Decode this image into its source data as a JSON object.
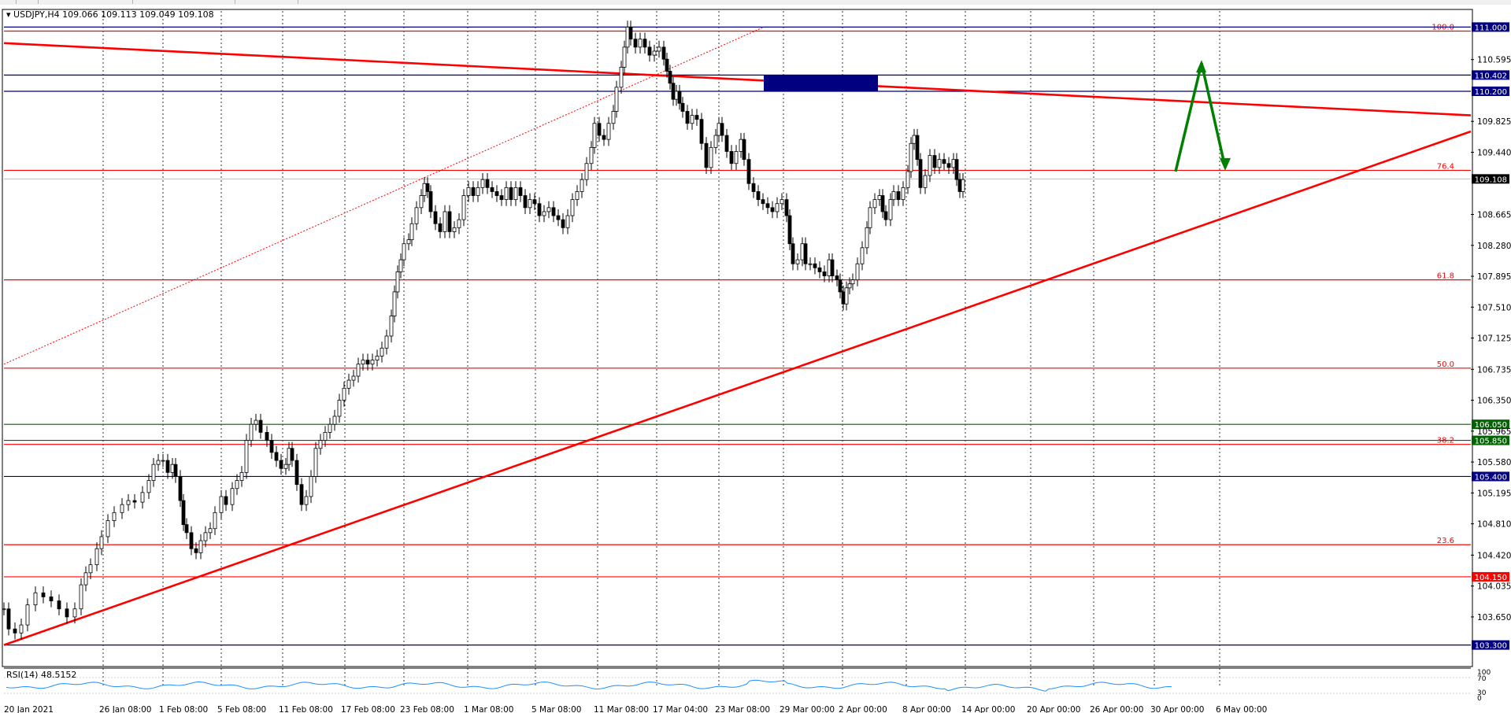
{
  "chart_data": {
    "type": "candlestick",
    "title": "USDJPY,H4",
    "ohlc_header": "109.066 109.113 109.049 109.108",
    "indicator": "RSI(14) 48.5152",
    "ylim": [
      103.1,
      111.2
    ],
    "price_ticks": [
      "110.595",
      "109.825",
      "109.440",
      "108.665",
      "108.280",
      "107.895",
      "107.510",
      "107.125",
      "106.735",
      "106.350",
      "105.965",
      "105.580",
      "105.195",
      "104.810",
      "104.420",
      "104.035",
      "103.650"
    ],
    "date_labels": [
      "20 Jan 2021",
      "26 Jan 08:00",
      "1 Feb 08:00",
      "5 Feb 08:00",
      "11 Feb 08:00",
      "17 Feb 08:00",
      "23 Feb 08:00",
      "1 Mar 08:00",
      "5 Mar 08:00",
      "11 Mar 08:00",
      "17 Mar 04:00",
      "23 Mar 08:00",
      "29 Mar 00:00",
      "2 Apr 00:00",
      "8 Apr 00:00",
      "14 Apr 00:00",
      "20 Apr 00:00",
      "26 Apr 00:00",
      "30 Apr 00:00",
      "6 May 00:00"
    ],
    "price_series": [
      [
        0,
        103.75
      ],
      [
        6,
        103.5
      ],
      [
        14,
        103.45
      ],
      [
        22,
        103.55
      ],
      [
        30,
        103.8
      ],
      [
        40,
        103.95
      ],
      [
        50,
        103.9
      ],
      [
        60,
        103.85
      ],
      [
        70,
        103.75
      ],
      [
        80,
        103.65
      ],
      [
        90,
        103.75
      ],
      [
        98,
        104.05
      ],
      [
        104,
        104.2
      ],
      [
        110,
        104.3
      ],
      [
        118,
        104.5
      ],
      [
        124,
        104.65
      ],
      [
        132,
        104.85
      ],
      [
        140,
        104.95
      ],
      [
        150,
        105.05
      ],
      [
        158,
        105.1
      ],
      [
        166,
        105.08
      ],
      [
        176,
        105.2
      ],
      [
        184,
        105.35
      ],
      [
        190,
        105.55
      ],
      [
        196,
        105.6
      ],
      [
        202,
        105.6
      ],
      [
        208,
        105.45
      ],
      [
        214,
        105.55
      ],
      [
        218,
        105.4
      ],
      [
        224,
        105.1
      ],
      [
        228,
        104.8
      ],
      [
        232,
        104.7
      ],
      [
        238,
        104.5
      ],
      [
        244,
        104.45
      ],
      [
        250,
        104.6
      ],
      [
        256,
        104.7
      ],
      [
        262,
        104.75
      ],
      [
        268,
        104.95
      ],
      [
        276,
        105.15
      ],
      [
        282,
        105.05
      ],
      [
        290,
        105.25
      ],
      [
        296,
        105.35
      ],
      [
        302,
        105.45
      ],
      [
        308,
        105.85
      ],
      [
        314,
        106.05
      ],
      [
        320,
        106.1
      ],
      [
        326,
        105.95
      ],
      [
        334,
        105.85
      ],
      [
        340,
        105.7
      ],
      [
        346,
        105.6
      ],
      [
        352,
        105.5
      ],
      [
        358,
        105.55
      ],
      [
        362,
        105.75
      ],
      [
        366,
        105.6
      ],
      [
        372,
        105.3
      ],
      [
        378,
        105.05
      ],
      [
        384,
        105.15
      ],
      [
        390,
        105.4
      ],
      [
        396,
        105.75
      ],
      [
        402,
        105.85
      ],
      [
        408,
        105.95
      ],
      [
        414,
        106.05
      ],
      [
        420,
        106.15
      ],
      [
        426,
        106.35
      ],
      [
        432,
        106.5
      ],
      [
        438,
        106.6
      ],
      [
        444,
        106.65
      ],
      [
        450,
        106.8
      ],
      [
        456,
        106.85
      ],
      [
        462,
        106.8
      ],
      [
        468,
        106.85
      ],
      [
        474,
        106.9
      ],
      [
        480,
        107.0
      ],
      [
        486,
        107.15
      ],
      [
        492,
        107.4
      ],
      [
        496,
        107.7
      ],
      [
        500,
        107.95
      ],
      [
        504,
        108.1
      ],
      [
        508,
        108.3
      ],
      [
        514,
        108.35
      ],
      [
        518,
        108.55
      ],
      [
        524,
        108.75
      ],
      [
        530,
        108.9
      ],
      [
        534,
        109.05
      ],
      [
        538,
        108.95
      ],
      [
        542,
        108.7
      ],
      [
        548,
        108.55
      ],
      [
        554,
        108.45
      ],
      [
        560,
        108.7
      ],
      [
        566,
        108.45
      ],
      [
        572,
        108.5
      ],
      [
        578,
        108.6
      ],
      [
        584,
        108.9
      ],
      [
        590,
        109.0
      ],
      [
        596,
        108.9
      ],
      [
        602,
        109.0
      ],
      [
        608,
        109.1
      ],
      [
        614,
        109.0
      ],
      [
        620,
        108.95
      ],
      [
        626,
        108.9
      ],
      [
        632,
        108.85
      ],
      [
        638,
        109.0
      ],
      [
        644,
        108.85
      ],
      [
        650,
        109.0
      ],
      [
        656,
        108.9
      ],
      [
        662,
        108.75
      ],
      [
        668,
        108.85
      ],
      [
        674,
        108.8
      ],
      [
        680,
        108.65
      ],
      [
        686,
        108.7
      ],
      [
        692,
        108.75
      ],
      [
        698,
        108.65
      ],
      [
        704,
        108.6
      ],
      [
        710,
        108.5
      ],
      [
        716,
        108.65
      ],
      [
        722,
        108.85
      ],
      [
        728,
        108.95
      ],
      [
        734,
        109.1
      ],
      [
        740,
        109.3
      ],
      [
        746,
        109.5
      ],
      [
        750,
        109.8
      ],
      [
        756,
        109.65
      ],
      [
        762,
        109.6
      ],
      [
        768,
        109.8
      ],
      [
        774,
        109.95
      ],
      [
        778,
        110.25
      ],
      [
        784,
        110.5
      ],
      [
        788,
        110.75
      ],
      [
        792,
        111.0
      ],
      [
        796,
        110.85
      ],
      [
        802,
        110.75
      ],
      [
        808,
        110.85
      ],
      [
        814,
        110.75
      ],
      [
        820,
        110.65
      ],
      [
        826,
        110.7
      ],
      [
        832,
        110.75
      ],
      [
        838,
        110.6
      ],
      [
        842,
        110.45
      ],
      [
        846,
        110.3
      ],
      [
        850,
        110.1
      ],
      [
        854,
        110.2
      ],
      [
        858,
        110.05
      ],
      [
        862,
        109.95
      ],
      [
        868,
        109.8
      ],
      [
        874,
        109.9
      ],
      [
        880,
        109.85
      ],
      [
        886,
        109.55
      ],
      [
        892,
        109.25
      ],
      [
        898,
        109.5
      ],
      [
        904,
        109.65
      ],
      [
        908,
        109.8
      ],
      [
        912,
        109.65
      ],
      [
        918,
        109.45
      ],
      [
        924,
        109.3
      ],
      [
        930,
        109.45
      ],
      [
        936,
        109.6
      ],
      [
        940,
        109.35
      ],
      [
        946,
        109.05
      ],
      [
        952,
        108.95
      ],
      [
        958,
        108.85
      ],
      [
        964,
        108.8
      ],
      [
        970,
        108.75
      ],
      [
        976,
        108.7
      ],
      [
        982,
        108.8
      ],
      [
        988,
        108.85
      ],
      [
        994,
        108.65
      ],
      [
        998,
        108.3
      ],
      [
        1002,
        108.05
      ],
      [
        1008,
        108.1
      ],
      [
        1014,
        108.3
      ],
      [
        1018,
        108.05
      ],
      [
        1024,
        108.05
      ],
      [
        1030,
        108.0
      ],
      [
        1036,
        107.95
      ],
      [
        1042,
        107.9
      ],
      [
        1048,
        108.1
      ],
      [
        1052,
        107.9
      ],
      [
        1058,
        107.85
      ],
      [
        1062,
        107.7
      ],
      [
        1066,
        107.55
      ],
      [
        1070,
        107.75
      ],
      [
        1074,
        107.8
      ],
      [
        1078,
        107.85
      ],
      [
        1084,
        108.05
      ],
      [
        1090,
        108.25
      ],
      [
        1096,
        108.5
      ],
      [
        1100,
        108.75
      ],
      [
        1106,
        108.85
      ],
      [
        1112,
        108.9
      ],
      [
        1116,
        108.7
      ],
      [
        1120,
        108.6
      ],
      [
        1126,
        108.85
      ],
      [
        1130,
        108.95
      ],
      [
        1136,
        108.85
      ],
      [
        1142,
        109.0
      ],
      [
        1148,
        109.2
      ],
      [
        1152,
        109.55
      ],
      [
        1156,
        109.65
      ],
      [
        1160,
        109.35
      ],
      [
        1164,
        109.0
      ],
      [
        1170,
        109.15
      ],
      [
        1176,
        109.4
      ],
      [
        1182,
        109.25
      ],
      [
        1188,
        109.35
      ],
      [
        1194,
        109.3
      ],
      [
        1200,
        109.25
      ],
      [
        1206,
        109.35
      ],
      [
        1210,
        109.1
      ],
      [
        1214,
        108.95
      ],
      [
        1218,
        109.1
      ]
    ],
    "h_lines": [
      {
        "price": 111.0,
        "color": "#000080",
        "box": true,
        "box_text": "111.000",
        "box_bg": "#000080"
      },
      {
        "price": 110.402,
        "color": "#000080",
        "box": true,
        "box_text": "110.402",
        "box_bg": "#000080"
      },
      {
        "price": 110.2,
        "color": "#000080",
        "box": true,
        "box_text": "110.200",
        "box_bg": "#000080"
      },
      {
        "price": 106.05,
        "color": "#006400",
        "box": true,
        "box_text": "106.050",
        "box_bg": "#006400"
      },
      {
        "price": 105.85,
        "color": "#006400",
        "box": true,
        "box_text": "105.850",
        "box_bg": "#006400"
      },
      {
        "price": 105.4,
        "color": "#000080",
        "box": true,
        "box_text": "105.400",
        "box_bg": "#000080"
      },
      {
        "price": 104.15,
        "color": "#ff0000",
        "box": true,
        "box_text": "104.150",
        "box_bg": "#ff0000"
      },
      {
        "price": 103.3,
        "color": "#000080",
        "box": true,
        "box_text": "103.300",
        "box_bg": "#000080"
      }
    ],
    "fib_levels": [
      {
        "label": "100.0",
        "price": 110.95
      },
      {
        "label": "76.4",
        "price": 109.215
      },
      {
        "label": "61.8",
        "price": 107.85
      },
      {
        "label": "50.0",
        "price": 106.75
      },
      {
        "label": "38.2",
        "price": 105.8
      },
      {
        "label": "23.6",
        "price": 104.55
      }
    ],
    "current_price": "109.108",
    "rsi_ticks": [
      "100",
      "70",
      "30",
      "0"
    ],
    "colors": {
      "red": "#ff0000",
      "navy": "#000080",
      "green": "#008000",
      "bull": "#000000",
      "rsi": "#1e90ff"
    }
  }
}
